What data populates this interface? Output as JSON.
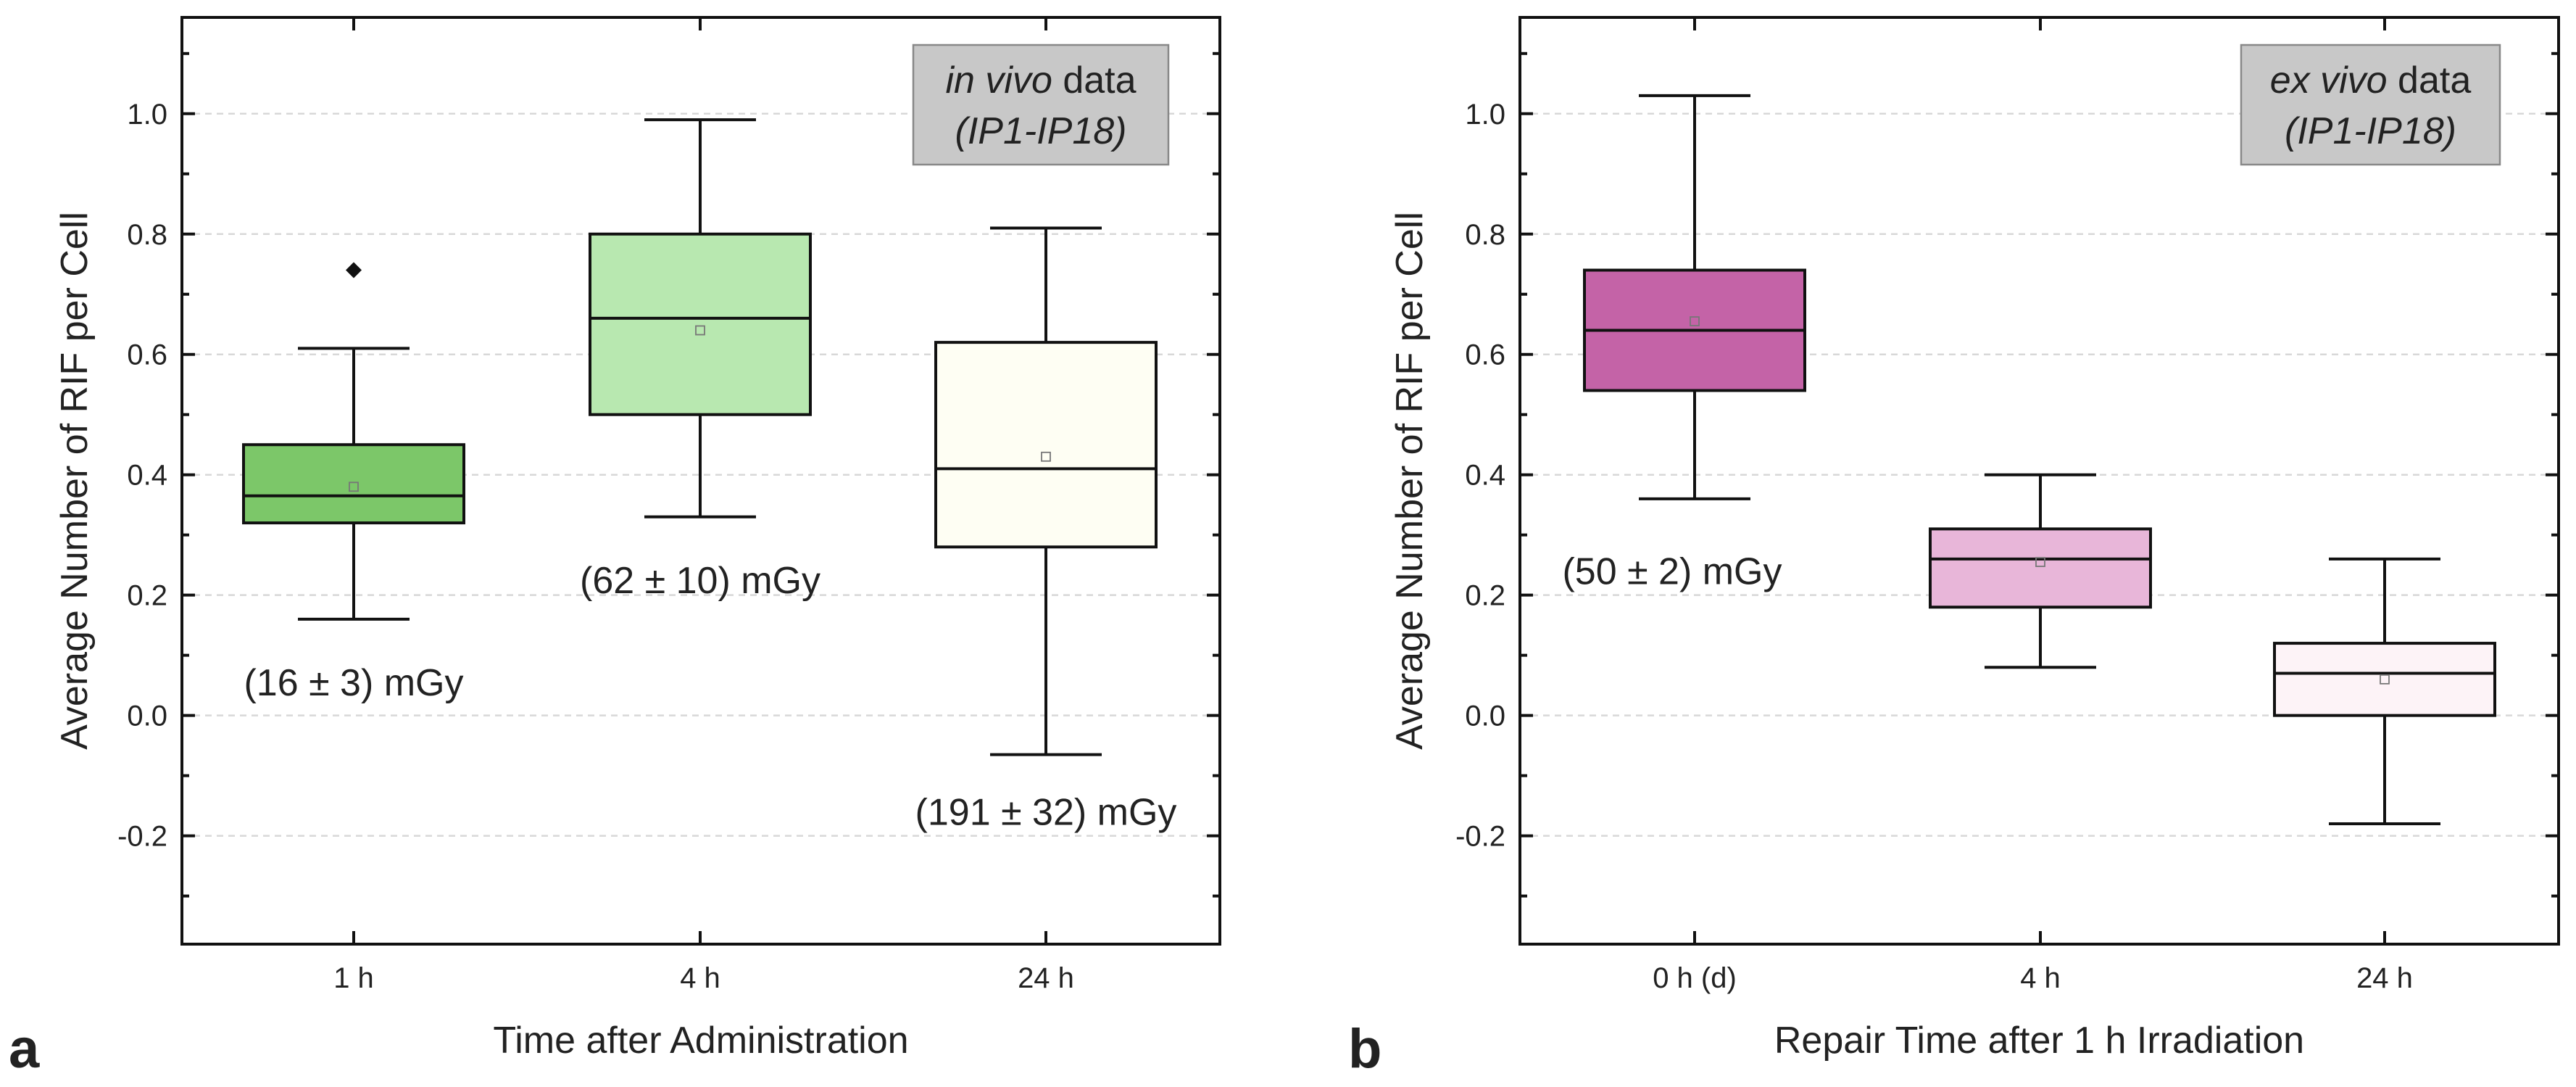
{
  "chart_data": [
    {
      "id": "a",
      "type": "box",
      "panel_label": "a",
      "xlabel": "Time after Administration",
      "ylabel": "Average Number of RIF per Cell",
      "ylim": [
        -0.38,
        1.16
      ],
      "yticks": [
        -0.2,
        0.0,
        0.2,
        0.4,
        0.6,
        0.8,
        1.0
      ],
      "ytick_labels": [
        "-0.2",
        "0.0",
        "0.2",
        "0.4",
        "0.6",
        "0.8",
        "1.0"
      ],
      "grid": true,
      "legend_box": {
        "line1_em": "in vivo",
        "line1_rest": " data",
        "line2": "(IP1-IP18)"
      },
      "categories": [
        "1 h",
        "4 h",
        "24 h"
      ],
      "boxes": [
        {
          "category": "1 h",
          "whisker_low": 0.16,
          "q1": 0.32,
          "median": 0.365,
          "q3": 0.45,
          "whisker_high": 0.61,
          "mean": 0.38,
          "outliers": [
            0.74
          ],
          "color": "#7cc769",
          "dose_label": "(16 ± 3) mGy",
          "dose_value": 0.055
        },
        {
          "category": "4 h",
          "whisker_low": 0.33,
          "q1": 0.5,
          "median": 0.66,
          "q3": 0.8,
          "whisker_high": 0.99,
          "mean": 0.64,
          "outliers": [],
          "color": "#b8e8b0",
          "dose_label": "(62 ± 10) mGy",
          "dose_value": 0.225
        },
        {
          "category": "24 h",
          "whisker_low": -0.065,
          "q1": 0.28,
          "median": 0.41,
          "q3": 0.62,
          "whisker_high": 0.81,
          "mean": 0.43,
          "outliers": [],
          "color": "#fefef3",
          "dose_label": "(191 ± 32) mGy",
          "dose_value": -0.16
        }
      ]
    },
    {
      "id": "b",
      "type": "box",
      "panel_label": "b",
      "xlabel": "Repair Time after 1 h Irradiation",
      "ylabel": "Average Number of RIF per Cell",
      "ylim": [
        -0.38,
        1.16
      ],
      "yticks": [
        -0.2,
        0.0,
        0.2,
        0.4,
        0.6,
        0.8,
        1.0
      ],
      "ytick_labels": [
        "-0.2",
        "0.0",
        "0.2",
        "0.4",
        "0.6",
        "0.8",
        "1.0"
      ],
      "grid": true,
      "legend_box": {
        "line1_em": "ex vivo",
        "line1_rest": " data",
        "line2": "(IP1-IP18)"
      },
      "categories": [
        "0 h (d)",
        "4 h",
        "24 h"
      ],
      "boxes": [
        {
          "category": "0 h (d)",
          "whisker_low": 0.36,
          "q1": 0.54,
          "median": 0.64,
          "q3": 0.74,
          "whisker_high": 1.03,
          "mean": 0.655,
          "outliers": [],
          "color": "#c463a7",
          "dose_label": "(50 ± 2) mGy",
          "dose_value": 0.24
        },
        {
          "category": "4 h",
          "whisker_low": 0.08,
          "q1": 0.18,
          "median": 0.26,
          "q3": 0.31,
          "whisker_high": 0.4,
          "mean": 0.255,
          "outliers": [],
          "color": "#e8b6d9",
          "dose_label": "",
          "dose_value": null
        },
        {
          "category": "24 h",
          "whisker_low": -0.18,
          "q1": 0.0,
          "median": 0.07,
          "q3": 0.12,
          "whisker_high": 0.26,
          "mean": 0.06,
          "outliers": [],
          "color": "#fdf3f7",
          "dose_label": "",
          "dose_value": null
        }
      ]
    }
  ]
}
